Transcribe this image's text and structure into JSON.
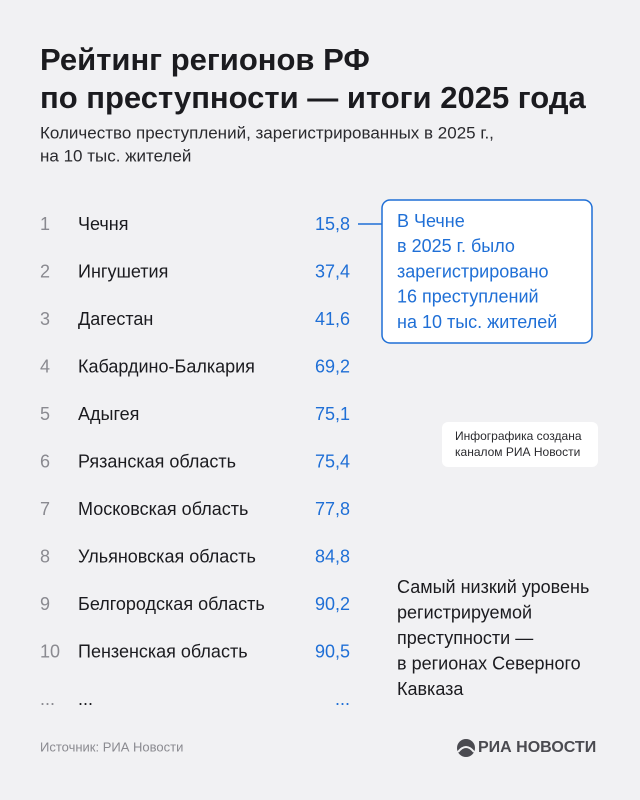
{
  "header": {
    "title_lines": [
      "Рейтинг регионов РФ",
      "по преступности — итоги 2025 года"
    ],
    "subtitle_lines": [
      "Количество преступлений, зарегистрированных в 2025 г.,",
      "на 10 тыс. жителей"
    ]
  },
  "table": {
    "rows": [
      [
        "1",
        "Чечня",
        "15,8"
      ],
      [
        "2",
        "Ингушетия",
        "37,4"
      ],
      [
        "3",
        "Дагестан",
        "41,6"
      ],
      [
        "4",
        "Кабардино-Балкария",
        "69,2"
      ],
      [
        "5",
        "Адыгея",
        "75,1"
      ],
      [
        "6",
        "Рязанская область",
        "75,4"
      ],
      [
        "7",
        "Московская область",
        "77,8"
      ],
      [
        "8",
        "Ульяновская область",
        "84,8"
      ],
      [
        "9",
        "Белгородская область",
        "90,2"
      ],
      [
        "10",
        "Пензенская область",
        "90,5"
      ],
      [
        "...",
        "...",
        "..."
      ]
    ]
  },
  "callout": {
    "lines": [
      "В Чечне",
      "в 2025 г. было",
      "зарегистрировано",
      "16 преступлений",
      "на 10 тыс. жителей"
    ]
  },
  "note": {
    "lines": [
      "Инфографика создана",
      "каналом РИА Новости"
    ]
  },
  "summary": {
    "lines": [
      "Самый низкий уровень",
      "регистрируемой",
      "преступности —",
      "в регионах Северного",
      "Кавказа"
    ]
  },
  "footer": {
    "source": "Источник: РИА Новости",
    "logo": "РИА НОВОСТИ"
  }
}
